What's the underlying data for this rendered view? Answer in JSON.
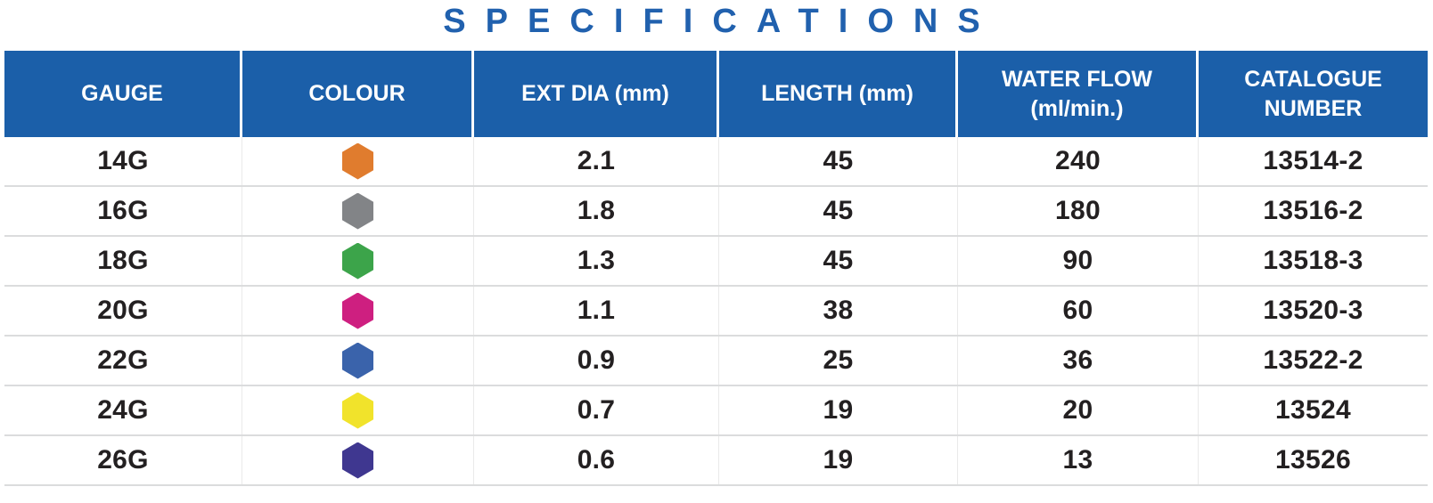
{
  "page": {
    "title": "SPECIFICATIONS"
  },
  "theme": {
    "title_color": "#2161AE",
    "header_bg": "#1B5FA9",
    "header_text_color": "#FFFFFF",
    "body_text_color": "#232021",
    "row_divider": "#DBDCDD",
    "column_divider": "#EAEAEA"
  },
  "table": {
    "columns": [
      {
        "key": "gauge",
        "label": "GAUGE"
      },
      {
        "key": "colour",
        "label": "COLOUR"
      },
      {
        "key": "ext_dia",
        "label": "EXT DIA (mm)"
      },
      {
        "key": "length",
        "label": "LENGTH (mm)"
      },
      {
        "key": "water_flow",
        "label": "WATER FLOW (ml/min.)"
      },
      {
        "key": "catalogue",
        "label": "CATALOGUE NUMBER"
      }
    ],
    "rows": [
      {
        "gauge": "14G",
        "colour_name": "orange",
        "colour_hex": "#E07C2E",
        "ext_dia": "2.1",
        "length": "45",
        "water_flow": "240",
        "catalogue": "13514-2"
      },
      {
        "gauge": "16G",
        "colour_name": "grey",
        "colour_hex": "#828487",
        "ext_dia": "1.8",
        "length": "45",
        "water_flow": "180",
        "catalogue": "13516-2"
      },
      {
        "gauge": "18G",
        "colour_name": "green",
        "colour_hex": "#3CA44A",
        "ext_dia": "1.3",
        "length": "45",
        "water_flow": "90",
        "catalogue": "13518-3"
      },
      {
        "gauge": "20G",
        "colour_name": "magenta",
        "colour_hex": "#CE1F80",
        "ext_dia": "1.1",
        "length": "38",
        "water_flow": "60",
        "catalogue": "13520-3"
      },
      {
        "gauge": "22G",
        "colour_name": "blue",
        "colour_hex": "#3A63AB",
        "ext_dia": "0.9",
        "length": "25",
        "water_flow": "36",
        "catalogue": "13522-2"
      },
      {
        "gauge": "24G",
        "colour_name": "yellow",
        "colour_hex": "#F1E32B",
        "ext_dia": "0.7",
        "length": "19",
        "water_flow": "20",
        "catalogue": "13524"
      },
      {
        "gauge": "26G",
        "colour_name": "violet",
        "colour_hex": "#3F3790",
        "ext_dia": "0.6",
        "length": "19",
        "water_flow": "13",
        "catalogue": "13526"
      }
    ]
  }
}
